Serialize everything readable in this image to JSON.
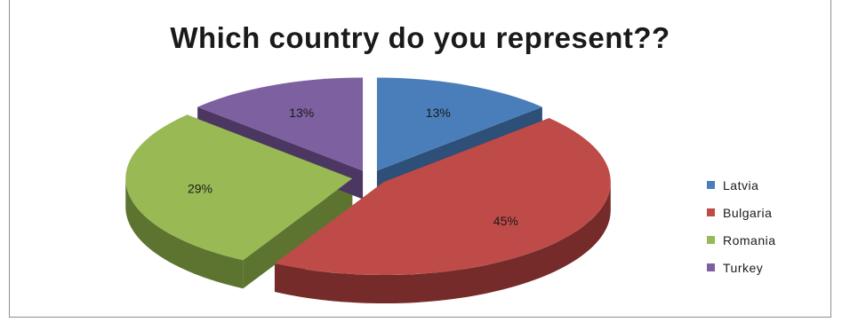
{
  "chart_data": {
    "type": "pie",
    "style": "3d-exploded",
    "title": "Which country do you represent??",
    "categories": [
      "Latvia",
      "Bulgaria",
      "Romania",
      "Turkey"
    ],
    "values": [
      13,
      45,
      29,
      13
    ],
    "data_labels": [
      "13%",
      "45%",
      "29%",
      "13%"
    ],
    "colors": [
      "#4a7ebb",
      "#be4b48",
      "#98b954",
      "#7d60a0"
    ],
    "side_colors": [
      "#2e4f78",
      "#742b29",
      "#5d7431",
      "#4b3762"
    ],
    "legend_position": "right"
  }
}
